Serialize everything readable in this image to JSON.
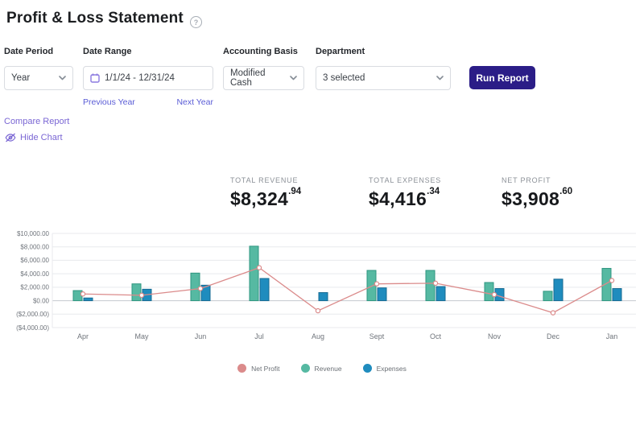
{
  "page": {
    "title": "Profit & Loss Statement"
  },
  "filters": {
    "date_period": {
      "label": "Date Period",
      "value": "Year"
    },
    "date_range": {
      "label": "Date Range",
      "value": "1/1/24 - 12/31/24",
      "prev_link": "Previous Year",
      "next_link": "Next Year"
    },
    "accounting_basis": {
      "label": "Accounting Basis",
      "value": "Modified Cash"
    },
    "department": {
      "label": "Department",
      "value": "3 selected"
    },
    "run_report_label": "Run Report"
  },
  "links": {
    "compare_report": "Compare Report",
    "hide_chart": "Hide Chart"
  },
  "totals": [
    {
      "label": "TOTAL REVENUE",
      "dollars": "$8,324",
      "cents": ".94"
    },
    {
      "label": "TOTAL EXPENSES",
      "dollars": "$4,416",
      "cents": ".34"
    },
    {
      "label": "NET PROFIT",
      "dollars": "$3,908",
      "cents": ".60"
    }
  ],
  "colors": {
    "accent_button": "#2b1d87",
    "link_purple": "#7a66d4",
    "link_blue": "#5a5cd6",
    "net_profit": "#db8b8b",
    "revenue": "#56b9a2",
    "revenue_stroke": "#2f9680",
    "expenses": "#1f8cbe",
    "expenses_stroke": "#156a92",
    "grid": "#e8eaed",
    "zero_line": "#c4c9cf",
    "axis_text": "#6f747b"
  },
  "chart_data": {
    "type": "bar+line combo",
    "categories": [
      "Apr",
      "May",
      "Jun",
      "Jul",
      "Aug",
      "Sept",
      "Oct",
      "Nov",
      "Dec",
      "Jan"
    ],
    "series": [
      {
        "name": "Net Profit",
        "type": "line",
        "values": [
          1000,
          800,
          1800,
          4900,
          -1500,
          2500,
          2600,
          900,
          -1800,
          3000
        ]
      },
      {
        "name": "Revenue",
        "type": "bar",
        "values": [
          1500,
          2500,
          4100,
          8100,
          0,
          4500,
          4500,
          2700,
          1400,
          4800
        ]
      },
      {
        "name": "Expenses",
        "type": "bar",
        "values": [
          400,
          1700,
          2300,
          3300,
          1200,
          1900,
          2100,
          1800,
          3200,
          1800
        ]
      }
    ],
    "y_ticks": [
      "$10,000.00",
      "$8,000.00",
      "$6,000.00",
      "$4,000.00",
      "$2,000.00",
      "$0.00",
      "($2,000.00)",
      "($4,000.00)"
    ],
    "y_tick_values": [
      10000,
      8000,
      6000,
      4000,
      2000,
      0,
      -2000,
      -4000
    ],
    "ylim": [
      -4000,
      10000
    ],
    "grid": true,
    "legend_position": "bottom"
  }
}
